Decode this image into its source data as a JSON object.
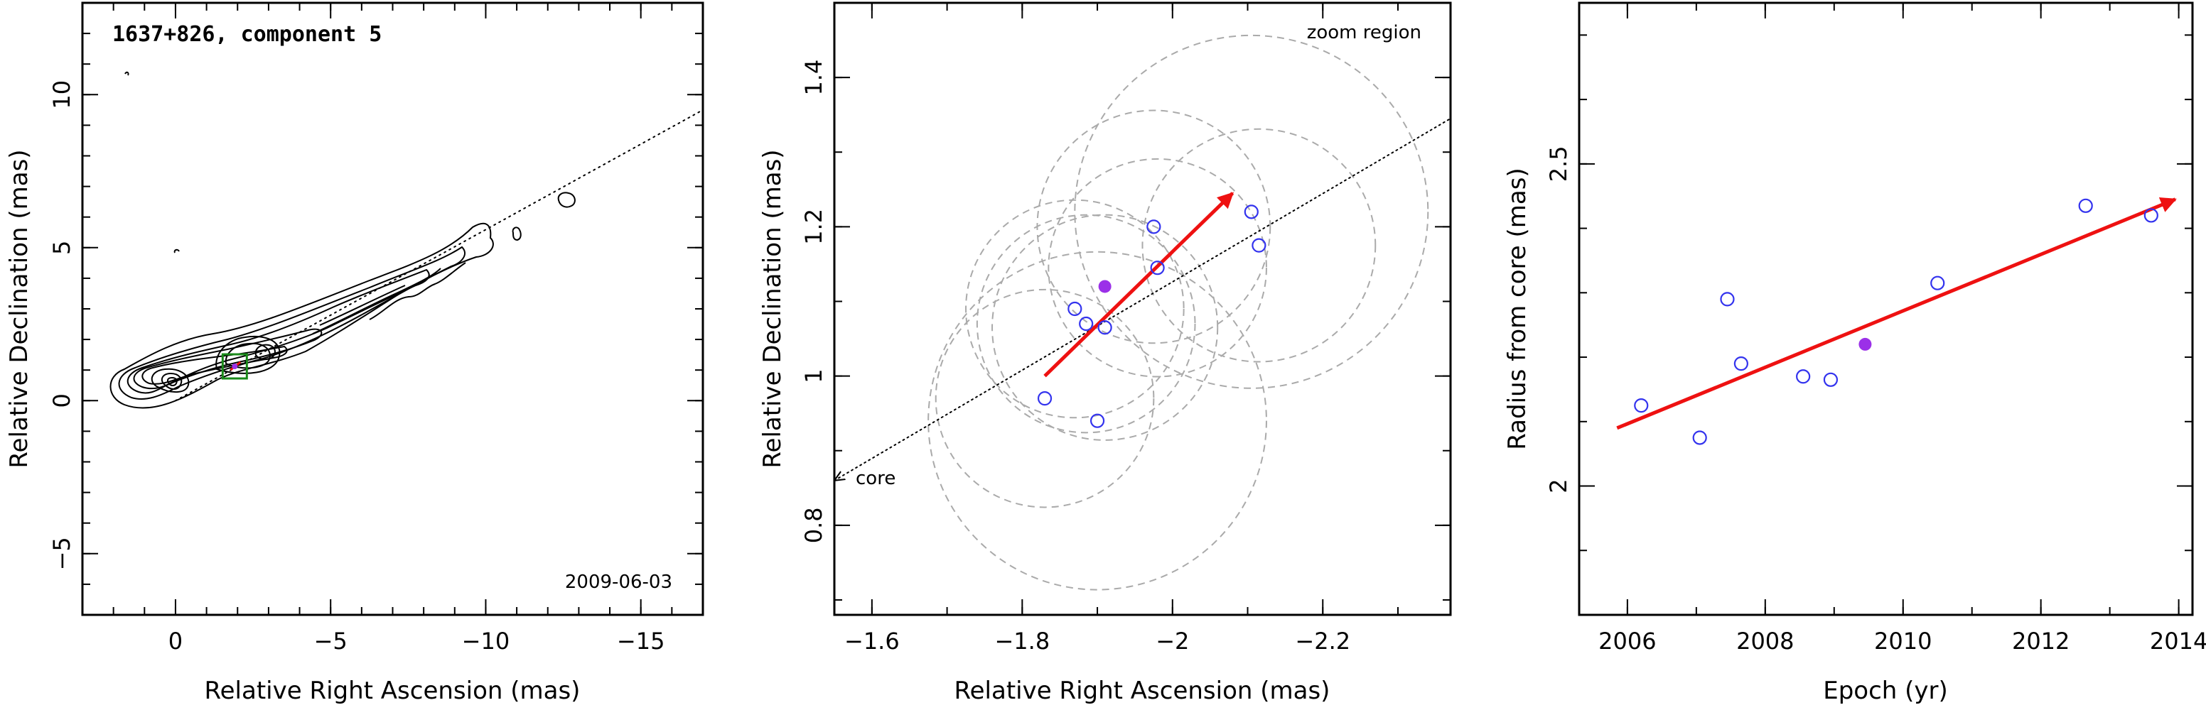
{
  "figure": {
    "panels": [
      {
        "panel": "left",
        "title": "1637+826, component 5",
        "date": "2009-06-03",
        "xlabel": "Relative Right Ascension (mas)",
        "ylabel": "Relative Declination (mas)",
        "xlim": [
          3,
          -17
        ],
        "ylim": [
          -7,
          13
        ],
        "xticks": [
          0,
          -5,
          -10,
          -15
        ],
        "yticks": [
          -5,
          0,
          5,
          10
        ]
      },
      {
        "panel": "middle",
        "xlabel": "Relative Right Ascension (mas)",
        "ylabel": "Relative Declination (mas)",
        "xlim": [
          -1.55,
          -2.37
        ],
        "ylim": [
          0.68,
          1.5
        ],
        "xticks": [
          -1.6,
          -1.8,
          -2,
          -2.2
        ],
        "yticks": [
          0.8,
          1,
          1.2,
          1.4
        ],
        "annotations": {
          "zoom": "zoom region",
          "core": "core"
        }
      },
      {
        "panel": "right",
        "xlabel": "Epoch (yr)",
        "ylabel": "Radius from core (mas)",
        "xlim": [
          2005.3,
          2014.2
        ],
        "ylim": [
          1.8,
          2.75
        ],
        "xticks": [
          2006,
          2008,
          2010,
          2012,
          2014
        ],
        "yticks": [
          2,
          2.5
        ]
      }
    ]
  },
  "colors": {
    "open_marker": "#3333ee",
    "filled_marker": "#9b30e8",
    "arrow": "#ee1111",
    "circles": "#aaaaaa",
    "box": "#1a8a1a"
  },
  "chart_data": [
    {
      "type": "contour",
      "title": "1637+826, component 5",
      "annotation": "2009-06-03",
      "xlabel": "Relative Right Ascension (mas)",
      "ylabel": "Relative Declination (mas)",
      "xlim": [
        3,
        -17
      ],
      "ylim": [
        -7,
        13
      ],
      "ridge_line": [
        [
          0,
          0
        ],
        [
          -17,
          9.5
        ]
      ],
      "component_position": [
        -1.91,
        1.12
      ]
    },
    {
      "type": "scatter",
      "xlabel": "Relative Right Ascension (mas)",
      "ylabel": "Relative Declination (mas)",
      "xlim": [
        -1.55,
        -2.37
      ],
      "ylim": [
        0.68,
        1.5
      ],
      "points_open": [
        {
          "x": -1.83,
          "y": 0.97
        },
        {
          "x": -1.9,
          "y": 0.94
        },
        {
          "x": -1.87,
          "y": 1.09
        },
        {
          "x": -1.885,
          "y": 1.07
        },
        {
          "x": -1.91,
          "y": 1.065
        },
        {
          "x": -1.975,
          "y": 1.2
        },
        {
          "x": -1.98,
          "y": 1.145
        },
        {
          "x": -2.105,
          "y": 1.22
        },
        {
          "x": -2.115,
          "y": 1.175
        }
      ],
      "point_filled": {
        "x": -1.91,
        "y": 1.12
      },
      "error_circles": [
        {
          "x": -1.83,
          "y": 0.97,
          "r": 0.145
        },
        {
          "x": -1.9,
          "y": 0.94,
          "r": 0.225
        },
        {
          "x": -1.87,
          "y": 1.09,
          "r": 0.145
        },
        {
          "x": -1.885,
          "y": 1.07,
          "r": 0.145
        },
        {
          "x": -1.91,
          "y": 1.065,
          "r": 0.15
        },
        {
          "x": -1.975,
          "y": 1.2,
          "r": 0.155
        },
        {
          "x": -1.98,
          "y": 1.145,
          "r": 0.145
        },
        {
          "x": -2.105,
          "y": 1.22,
          "r": 0.235
        },
        {
          "x": -2.115,
          "y": 1.175,
          "r": 0.155
        }
      ],
      "ridge_line": [
        [
          -1.55,
          0.86
        ],
        [
          -2.37,
          1.345
        ]
      ],
      "arrow": {
        "from": [
          -1.83,
          1.0
        ],
        "to": [
          -2.08,
          1.245
        ]
      },
      "annotations": [
        "zoom region",
        "core"
      ]
    },
    {
      "type": "scatter",
      "xlabel": "Epoch (yr)",
      "ylabel": "Radius from core (mas)",
      "xlim": [
        2005.3,
        2014.2
      ],
      "ylim": [
        1.8,
        2.75
      ],
      "series": [
        {
          "x": [
            2006.2,
            2007.05,
            2007.45,
            2007.65,
            2008.55,
            2008.95,
            2010.5,
            2012.65,
            2013.6
          ],
          "y": [
            2.125,
            2.075,
            2.29,
            2.19,
            2.17,
            2.165,
            2.315,
            2.435,
            2.42
          ]
        }
      ],
      "filled_point": {
        "x": 2009.45,
        "y": 2.22
      },
      "fit_arrow": {
        "from": [
          2005.85,
          2.09
        ],
        "to": [
          2013.95,
          2.445
        ]
      }
    }
  ]
}
